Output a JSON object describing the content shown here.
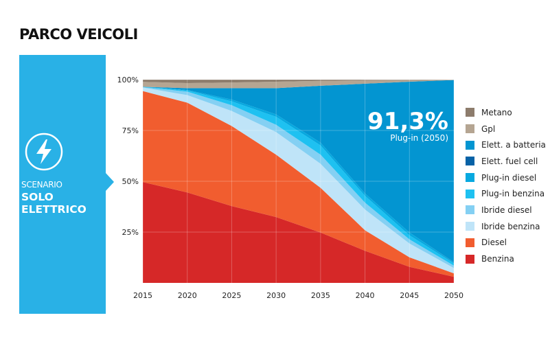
{
  "title": "PARCO VEICOLI",
  "scenario": {
    "label": "SCENARIO",
    "name": "SOLO ELETTRICO",
    "icon": "lightning-bolt-icon",
    "color": "#29b1e6"
  },
  "annotation": {
    "value": "91,3%",
    "caption": "Plug-in (2050)"
  },
  "chart_data": {
    "type": "area",
    "stacked": true,
    "title": "PARCO VEICOLI",
    "xlabel": "",
    "ylabel": "",
    "x": [
      2015,
      2020,
      2025,
      2030,
      2035,
      2040,
      2045,
      2050
    ],
    "x_tick_labels": [
      "2015",
      "2020",
      "2025",
      "2030",
      "2035",
      "2040",
      "2045",
      "2050"
    ],
    "ylim": [
      0,
      100
    ],
    "y_ticks": [
      25,
      50,
      75,
      100
    ],
    "y_tick_labels": [
      "25%",
      "50%",
      "75%",
      "100%"
    ],
    "grid": true,
    "legend_position": "right",
    "series": [
      {
        "name": "Benzina",
        "color": "#d62828",
        "values": [
          49.6,
          44.5,
          37.8,
          32.4,
          24.8,
          15.8,
          7.9,
          3.0
        ]
      },
      {
        "name": "Diesel",
        "color": "#f15d2f",
        "values": [
          44.8,
          44.2,
          39.4,
          30.7,
          22.0,
          10.1,
          4.7,
          1.7
        ]
      },
      {
        "name": "Ibride benzina",
        "color": "#bfe4f8",
        "values": [
          1.7,
          3.7,
          7.4,
          11.1,
          11.8,
          10.2,
          6.8,
          2.6
        ]
      },
      {
        "name": "Ibride diesel",
        "color": "#84d0f3",
        "values": [
          0.2,
          1.7,
          2.8,
          3.6,
          4.5,
          3.4,
          2.0,
          1.2
        ]
      },
      {
        "name": "Plug-in benzina",
        "color": "#1ec1f1",
        "values": [
          0.2,
          0.6,
          1.9,
          3.9,
          4.5,
          3.3,
          2.0,
          1.1
        ]
      },
      {
        "name": "Plug-in diesel",
        "color": "#07a9e0",
        "values": [
          0.0,
          0.2,
          0.9,
          1.2,
          1.4,
          1.2,
          1.4,
          0.5
        ]
      },
      {
        "name": "Elett. fuel cell",
        "color": "#0762a6",
        "values": [
          0.0,
          0.0,
          0.0,
          0.0,
          0.0,
          0.0,
          0.0,
          0.1
        ]
      },
      {
        "name": "Elett. a batteria",
        "color": "#0395d1",
        "values": [
          0.0,
          0.9,
          5.6,
          12.9,
          28.0,
          54.0,
          74.2,
          89.6
        ]
      },
      {
        "name": "Gpl",
        "color": "#b5a592",
        "values": [
          2.4,
          2.5,
          2.8,
          3.2,
          2.4,
          1.7,
          0.8,
          0.1
        ]
      },
      {
        "name": "Metano",
        "color": "#8d7c6c",
        "values": [
          1.1,
          1.7,
          1.4,
          1.0,
          0.6,
          0.3,
          0.2,
          0.1
        ]
      }
    ],
    "annotations": [
      "91,3%",
      "Plug-in (2050)"
    ]
  }
}
